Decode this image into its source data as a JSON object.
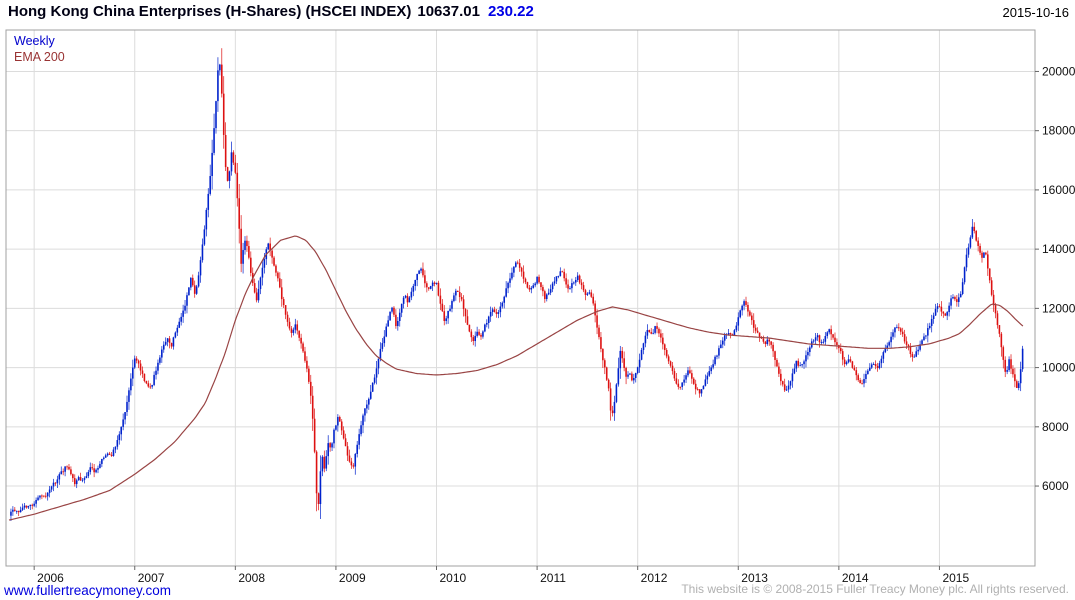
{
  "header": {
    "title": "Hong Kong China Enterprises (H-Shares) (HSCEI INDEX)",
    "last_price": "10637.01",
    "change": "230.22",
    "date": "2015-10-16"
  },
  "legend": {
    "timeframe": "Weekly",
    "indicator": "EMA 200"
  },
  "footer": {
    "site": "www.fullertreacymoney.com",
    "copyright": "This website is © 2008-2015 Fuller Treacy Money plc. All rights reserved."
  },
  "chart_data": {
    "type": "candlestick",
    "title": "Hong Kong China Enterprises (H-Shares) (HSCEI INDEX)",
    "timeframe": "Weekly",
    "overlay": "EMA 200",
    "last_close": 10637.01,
    "change": 230.22,
    "grid": true,
    "legend_position": "top-left",
    "x_ticks": [
      2006,
      2007,
      2008,
      2009,
      2010,
      2011,
      2012,
      2013,
      2014,
      2015
    ],
    "y_ticks": [
      6000,
      8000,
      10000,
      12000,
      14000,
      16000,
      18000,
      20000
    ],
    "xlim": [
      2005.72,
      2015.95
    ],
    "ylim": [
      3300,
      21400
    ],
    "colors": {
      "up": "#0022cc",
      "down": "#dd1111",
      "ema": "#994444",
      "grid": "#dcdcdc",
      "border": "#a0a0a0",
      "axis_text": "#111111"
    },
    "price_path": [
      [
        2005.75,
        5050
      ],
      [
        2005.79,
        5150
      ],
      [
        2005.83,
        5100
      ],
      [
        2005.87,
        5250
      ],
      [
        2005.91,
        5350
      ],
      [
        2005.95,
        5300
      ],
      [
        2006.0,
        5450
      ],
      [
        2006.04,
        5600
      ],
      [
        2006.08,
        5750
      ],
      [
        2006.12,
        5650
      ],
      [
        2006.16,
        5900
      ],
      [
        2006.2,
        6100
      ],
      [
        2006.24,
        6300
      ],
      [
        2006.28,
        6500
      ],
      [
        2006.32,
        6700
      ],
      [
        2006.36,
        6400
      ],
      [
        2006.4,
        6100
      ],
      [
        2006.44,
        6300
      ],
      [
        2006.48,
        6200
      ],
      [
        2006.52,
        6400
      ],
      [
        2006.56,
        6600
      ],
      [
        2006.6,
        6500
      ],
      [
        2006.64,
        6700
      ],
      [
        2006.68,
        6900
      ],
      [
        2006.72,
        7100
      ],
      [
        2006.76,
        7000
      ],
      [
        2006.8,
        7300
      ],
      [
        2006.84,
        7700
      ],
      [
        2006.88,
        8200
      ],
      [
        2006.92,
        8800
      ],
      [
        2006.96,
        9600
      ],
      [
        2007.0,
        10300
      ],
      [
        2007.04,
        10100
      ],
      [
        2007.08,
        9700
      ],
      [
        2007.12,
        9400
      ],
      [
        2007.16,
        9300
      ],
      [
        2007.2,
        9800
      ],
      [
        2007.24,
        10300
      ],
      [
        2007.28,
        10700
      ],
      [
        2007.32,
        11000
      ],
      [
        2007.36,
        10700
      ],
      [
        2007.4,
        11200
      ],
      [
        2007.44,
        11500
      ],
      [
        2007.48,
        11900
      ],
      [
        2007.52,
        12400
      ],
      [
        2007.56,
        13000
      ],
      [
        2007.6,
        12400
      ],
      [
        2007.64,
        13200
      ],
      [
        2007.68,
        14300
      ],
      [
        2007.72,
        15600
      ],
      [
        2007.76,
        16800
      ],
      [
        2007.8,
        18600
      ],
      [
        2007.82,
        19800
      ],
      [
        2007.84,
        20500
      ],
      [
        2007.86,
        19600
      ],
      [
        2007.88,
        18200
      ],
      [
        2007.9,
        16800
      ],
      [
        2007.93,
        16200
      ],
      [
        2007.96,
        17300
      ],
      [
        2008.0,
        16600
      ],
      [
        2008.03,
        15200
      ],
      [
        2008.06,
        13400
      ],
      [
        2008.09,
        14300
      ],
      [
        2008.12,
        14000
      ],
      [
        2008.15,
        13300
      ],
      [
        2008.18,
        12700
      ],
      [
        2008.21,
        12300
      ],
      [
        2008.24,
        12900
      ],
      [
        2008.28,
        13600
      ],
      [
        2008.32,
        14200
      ],
      [
        2008.36,
        13800
      ],
      [
        2008.4,
        13300
      ],
      [
        2008.44,
        12700
      ],
      [
        2008.48,
        12100
      ],
      [
        2008.52,
        11500
      ],
      [
        2008.56,
        11100
      ],
      [
        2008.6,
        11500
      ],
      [
        2008.64,
        11000
      ],
      [
        2008.68,
        10400
      ],
      [
        2008.72,
        9800
      ],
      [
        2008.75,
        9100
      ],
      [
        2008.78,
        7800
      ],
      [
        2008.8,
        6200
      ],
      [
        2008.82,
        4950
      ],
      [
        2008.84,
        6300
      ],
      [
        2008.86,
        7100
      ],
      [
        2008.88,
        6500
      ],
      [
        2008.9,
        6900
      ],
      [
        2008.92,
        7500
      ],
      [
        2008.95,
        7200
      ],
      [
        2008.98,
        7900
      ],
      [
        2009.02,
        8300
      ],
      [
        2009.05,
        8000
      ],
      [
        2009.08,
        7500
      ],
      [
        2009.11,
        7100
      ],
      [
        2009.14,
        6800
      ],
      [
        2009.17,
        6600
      ],
      [
        2009.2,
        7200
      ],
      [
        2009.24,
        7900
      ],
      [
        2009.28,
        8500
      ],
      [
        2009.32,
        8900
      ],
      [
        2009.36,
        9400
      ],
      [
        2009.4,
        9900
      ],
      [
        2009.44,
        10600
      ],
      [
        2009.48,
        11100
      ],
      [
        2009.52,
        11600
      ],
      [
        2009.56,
        12100
      ],
      [
        2009.6,
        11400
      ],
      [
        2009.64,
        11900
      ],
      [
        2009.68,
        12500
      ],
      [
        2009.72,
        12200
      ],
      [
        2009.76,
        12700
      ],
      [
        2009.8,
        13100
      ],
      [
        2009.84,
        13400
      ],
      [
        2009.88,
        12900
      ],
      [
        2009.92,
        12600
      ],
      [
        2009.96,
        12900
      ],
      [
        2010.0,
        12800
      ],
      [
        2010.04,
        12100
      ],
      [
        2010.08,
        11600
      ],
      [
        2010.12,
        11900
      ],
      [
        2010.16,
        12300
      ],
      [
        2010.2,
        12600
      ],
      [
        2010.24,
        12400
      ],
      [
        2010.28,
        11900
      ],
      [
        2010.32,
        11300
      ],
      [
        2010.36,
        10900
      ],
      [
        2010.4,
        11200
      ],
      [
        2010.44,
        11000
      ],
      [
        2010.48,
        11400
      ],
      [
        2010.52,
        11700
      ],
      [
        2010.56,
        12000
      ],
      [
        2010.6,
        11800
      ],
      [
        2010.64,
        12100
      ],
      [
        2010.68,
        12500
      ],
      [
        2010.72,
        12900
      ],
      [
        2010.76,
        13300
      ],
      [
        2010.8,
        13600
      ],
      [
        2010.84,
        13300
      ],
      [
        2010.88,
        12900
      ],
      [
        2010.92,
        12600
      ],
      [
        2010.96,
        12800
      ],
      [
        2011.0,
        13000
      ],
      [
        2011.04,
        12700
      ],
      [
        2011.08,
        12300
      ],
      [
        2011.12,
        12600
      ],
      [
        2011.16,
        12900
      ],
      [
        2011.2,
        13100
      ],
      [
        2011.24,
        13300
      ],
      [
        2011.28,
        12900
      ],
      [
        2011.32,
        12600
      ],
      [
        2011.36,
        12900
      ],
      [
        2011.4,
        13100
      ],
      [
        2011.44,
        12800
      ],
      [
        2011.48,
        12500
      ],
      [
        2011.52,
        12600
      ],
      [
        2011.56,
        12200
      ],
      [
        2011.6,
        11300
      ],
      [
        2011.64,
        10500
      ],
      [
        2011.68,
        9900
      ],
      [
        2011.71,
        9300
      ],
      [
        2011.74,
        8200
      ],
      [
        2011.77,
        8900
      ],
      [
        2011.8,
        9700
      ],
      [
        2011.83,
        10700
      ],
      [
        2011.86,
        10100
      ],
      [
        2011.89,
        9600
      ],
      [
        2011.92,
        9900
      ],
      [
        2011.95,
        9500
      ],
      [
        2011.98,
        9800
      ],
      [
        2012.02,
        10300
      ],
      [
        2012.06,
        10900
      ],
      [
        2012.1,
        11300
      ],
      [
        2012.14,
        11100
      ],
      [
        2012.18,
        11400
      ],
      [
        2012.22,
        11100
      ],
      [
        2012.26,
        10700
      ],
      [
        2012.3,
        10300
      ],
      [
        2012.34,
        9900
      ],
      [
        2012.38,
        9500
      ],
      [
        2012.42,
        9300
      ],
      [
        2012.46,
        9600
      ],
      [
        2012.5,
        9900
      ],
      [
        2012.54,
        9600
      ],
      [
        2012.58,
        9300
      ],
      [
        2012.62,
        9100
      ],
      [
        2012.66,
        9500
      ],
      [
        2012.7,
        9800
      ],
      [
        2012.74,
        10100
      ],
      [
        2012.78,
        10400
      ],
      [
        2012.82,
        10700
      ],
      [
        2012.86,
        11000
      ],
      [
        2012.9,
        11200
      ],
      [
        2012.94,
        11100
      ],
      [
        2012.98,
        11400
      ],
      [
        2013.02,
        11900
      ],
      [
        2013.06,
        12200
      ],
      [
        2013.1,
        11900
      ],
      [
        2013.14,
        11500
      ],
      [
        2013.18,
        11200
      ],
      [
        2013.22,
        11000
      ],
      [
        2013.26,
        10800
      ],
      [
        2013.3,
        11000
      ],
      [
        2013.34,
        10600
      ],
      [
        2013.38,
        10100
      ],
      [
        2013.42,
        9600
      ],
      [
        2013.46,
        9200
      ],
      [
        2013.5,
        9400
      ],
      [
        2013.54,
        9800
      ],
      [
        2013.58,
        10200
      ],
      [
        2013.62,
        10000
      ],
      [
        2013.66,
        10300
      ],
      [
        2013.7,
        10600
      ],
      [
        2013.74,
        10900
      ],
      [
        2013.78,
        11100
      ],
      [
        2013.82,
        10800
      ],
      [
        2013.86,
        11000
      ],
      [
        2013.9,
        11300
      ],
      [
        2013.94,
        11000
      ],
      [
        2013.98,
        10800
      ],
      [
        2014.02,
        10500
      ],
      [
        2014.06,
        10100
      ],
      [
        2014.1,
        10300
      ],
      [
        2014.14,
        10000
      ],
      [
        2014.18,
        9700
      ],
      [
        2014.22,
        9400
      ],
      [
        2014.26,
        9700
      ],
      [
        2014.3,
        10000
      ],
      [
        2014.34,
        10200
      ],
      [
        2014.38,
        10000
      ],
      [
        2014.42,
        10300
      ],
      [
        2014.46,
        10600
      ],
      [
        2014.5,
        10900
      ],
      [
        2014.54,
        11200
      ],
      [
        2014.58,
        11400
      ],
      [
        2014.62,
        11200
      ],
      [
        2014.66,
        10900
      ],
      [
        2014.7,
        10600
      ],
      [
        2014.74,
        10300
      ],
      [
        2014.78,
        10600
      ],
      [
        2014.82,
        10900
      ],
      [
        2014.86,
        11100
      ],
      [
        2014.9,
        11400
      ],
      [
        2014.94,
        11800
      ],
      [
        2014.98,
        12100
      ],
      [
        2015.02,
        11900
      ],
      [
        2015.06,
        11700
      ],
      [
        2015.1,
        12200
      ],
      [
        2015.14,
        12400
      ],
      [
        2015.18,
        12200
      ],
      [
        2015.22,
        12600
      ],
      [
        2015.26,
        13600
      ],
      [
        2015.3,
        14300
      ],
      [
        2015.33,
        14800
      ],
      [
        2015.36,
        14400
      ],
      [
        2015.39,
        14100
      ],
      [
        2015.42,
        13700
      ],
      [
        2015.45,
        14000
      ],
      [
        2015.48,
        13400
      ],
      [
        2015.51,
        12700
      ],
      [
        2015.54,
        12100
      ],
      [
        2015.57,
        11600
      ],
      [
        2015.6,
        11100
      ],
      [
        2015.63,
        10300
      ],
      [
        2015.66,
        9700
      ],
      [
        2015.69,
        10300
      ],
      [
        2015.72,
        9900
      ],
      [
        2015.75,
        9500
      ],
      [
        2015.78,
        9250
      ],
      [
        2015.8,
        9800
      ],
      [
        2015.82,
        10300
      ],
      [
        2015.83,
        10637
      ]
    ],
    "ema_path": [
      [
        2005.75,
        4850
      ],
      [
        2006.0,
        5050
      ],
      [
        2006.25,
        5300
      ],
      [
        2006.5,
        5550
      ],
      [
        2006.75,
        5850
      ],
      [
        2007.0,
        6400
      ],
      [
        2007.2,
        6900
      ],
      [
        2007.4,
        7500
      ],
      [
        2007.6,
        8300
      ],
      [
        2007.7,
        8800
      ],
      [
        2007.8,
        9600
      ],
      [
        2007.9,
        10500
      ],
      [
        2008.0,
        11600
      ],
      [
        2008.1,
        12500
      ],
      [
        2008.2,
        13200
      ],
      [
        2008.3,
        13800
      ],
      [
        2008.45,
        14300
      ],
      [
        2008.6,
        14450
      ],
      [
        2008.7,
        14300
      ],
      [
        2008.8,
        13900
      ],
      [
        2008.9,
        13300
      ],
      [
        2009.0,
        12600
      ],
      [
        2009.1,
        11900
      ],
      [
        2009.2,
        11300
      ],
      [
        2009.3,
        10800
      ],
      [
        2009.4,
        10400
      ],
      [
        2009.5,
        10150
      ],
      [
        2009.6,
        9950
      ],
      [
        2009.8,
        9800
      ],
      [
        2010.0,
        9750
      ],
      [
        2010.2,
        9800
      ],
      [
        2010.4,
        9900
      ],
      [
        2010.6,
        10100
      ],
      [
        2010.8,
        10400
      ],
      [
        2011.0,
        10800
      ],
      [
        2011.2,
        11200
      ],
      [
        2011.4,
        11600
      ],
      [
        2011.6,
        11900
      ],
      [
        2011.75,
        12050
      ],
      [
        2011.9,
        11950
      ],
      [
        2012.1,
        11750
      ],
      [
        2012.3,
        11550
      ],
      [
        2012.5,
        11350
      ],
      [
        2012.7,
        11200
      ],
      [
        2012.9,
        11100
      ],
      [
        2013.1,
        11050
      ],
      [
        2013.3,
        11000
      ],
      [
        2013.5,
        10900
      ],
      [
        2013.7,
        10800
      ],
      [
        2013.9,
        10750
      ],
      [
        2014.1,
        10700
      ],
      [
        2014.3,
        10650
      ],
      [
        2014.5,
        10650
      ],
      [
        2014.7,
        10700
      ],
      [
        2014.9,
        10800
      ],
      [
        2015.0,
        10900
      ],
      [
        2015.1,
        11000
      ],
      [
        2015.2,
        11150
      ],
      [
        2015.3,
        11450
      ],
      [
        2015.4,
        11800
      ],
      [
        2015.52,
        12150
      ],
      [
        2015.6,
        12100
      ],
      [
        2015.68,
        11900
      ],
      [
        2015.75,
        11650
      ],
      [
        2015.83,
        11400
      ]
    ]
  }
}
